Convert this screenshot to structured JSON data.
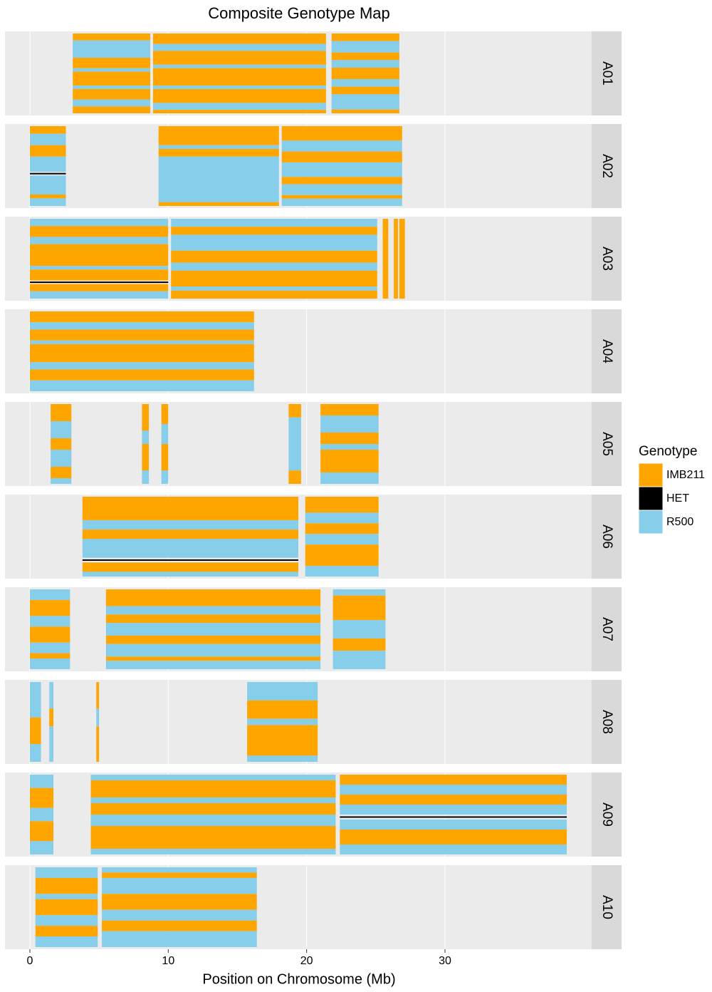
{
  "chart_data": {
    "type": "genotype-map",
    "title": "Composite Genotype Map",
    "x_label": "Position on Chromosome (Mb)",
    "xlim": [
      -1.8,
      40.6
    ],
    "xticks": [
      0,
      10,
      20,
      30
    ],
    "legend_title": "Genotype",
    "genotypes": [
      {
        "name": "IMB211",
        "color": "#ffa500"
      },
      {
        "name": "HET",
        "color": "#000000"
      },
      {
        "name": "R500",
        "color": "#87ceeb"
      }
    ],
    "chromosomes": [
      {
        "name": "A01",
        "blocks": [
          {
            "start": 3.1,
            "end": 8.7,
            "bands": [
              [
                0,
                2
              ],
              [
                2,
                5
              ],
              [
                0,
                3
              ],
              [
                2,
                1
              ],
              [
                0,
                4
              ],
              [
                2,
                1
              ],
              [
                0,
                3
              ],
              [
                2,
                2
              ],
              [
                0,
                2
              ]
            ]
          },
          {
            "start": 8.9,
            "end": 21.4,
            "bands": [
              [
                0,
                3
              ],
              [
                2,
                2
              ],
              [
                0,
                4
              ],
              [
                2,
                1
              ],
              [
                0,
                5
              ],
              [
                2,
                1
              ],
              [
                0,
                4
              ],
              [
                2,
                2
              ],
              [
                0,
                1
              ]
            ]
          },
          {
            "start": 21.8,
            "end": 26.7,
            "bands": [
              [
                0,
                2
              ],
              [
                2,
                3
              ],
              [
                0,
                2
              ],
              [
                2,
                2
              ],
              [
                0,
                3
              ],
              [
                2,
                2
              ],
              [
                0,
                2
              ],
              [
                2,
                4
              ],
              [
                0,
                1
              ]
            ]
          }
        ]
      },
      {
        "name": "A02",
        "blocks": [
          {
            "start": 0,
            "end": 2.6,
            "bands": [
              [
                0,
                2
              ],
              [
                2,
                3
              ],
              [
                0,
                3
              ],
              [
                2,
                4
              ],
              [
                1,
                1
              ],
              [
                2,
                5
              ],
              [
                0,
                1
              ],
              [
                2,
                2
              ]
            ]
          },
          {
            "start": 9.3,
            "end": 18.0,
            "bands": [
              [
                0,
                5
              ],
              [
                2,
                1
              ],
              [
                0,
                2
              ],
              [
                2,
                12
              ],
              [
                0,
                1
              ]
            ]
          },
          {
            "start": 18.2,
            "end": 26.9,
            "bands": [
              [
                0,
                4
              ],
              [
                2,
                3
              ],
              [
                0,
                3
              ],
              [
                2,
                4
              ],
              [
                0,
                2
              ],
              [
                2,
                3
              ],
              [
                0,
                1
              ],
              [
                2,
                2
              ]
            ]
          }
        ]
      },
      {
        "name": "A03",
        "blocks": [
          {
            "start": 0,
            "end": 10.0,
            "bands": [
              [
                2,
                2
              ],
              [
                0,
                3
              ],
              [
                2,
                2
              ],
              [
                0,
                6
              ],
              [
                2,
                1
              ],
              [
                0,
                3
              ],
              [
                1,
                1
              ],
              [
                0,
                2
              ],
              [
                2,
                2
              ]
            ]
          },
          {
            "start": 10.2,
            "end": 25.1,
            "bands": [
              [
                2,
                2
              ],
              [
                0,
                2
              ],
              [
                2,
                4
              ],
              [
                0,
                3
              ],
              [
                2,
                2
              ],
              [
                0,
                4
              ],
              [
                2,
                1
              ],
              [
                0,
                2
              ]
            ]
          },
          {
            "start": 25.5,
            "end": 25.9,
            "bands": [
              [
                0,
                10
              ]
            ]
          },
          {
            "start": 26.3,
            "end": 26.6,
            "bands": [
              [
                0,
                10
              ]
            ]
          },
          {
            "start": 26.7,
            "end": 27.1,
            "bands": [
              [
                0,
                10
              ]
            ]
          }
        ]
      },
      {
        "name": "A04",
        "blocks": [
          {
            "start": 0,
            "end": 16.2,
            "bands": [
              [
                0,
                3
              ],
              [
                2,
                2
              ],
              [
                0,
                3
              ],
              [
                2,
                1
              ],
              [
                0,
                5
              ],
              [
                2,
                2
              ],
              [
                0,
                3
              ],
              [
                2,
                3
              ]
            ]
          }
        ]
      },
      {
        "name": "A05",
        "blocks": [
          {
            "start": 1.5,
            "end": 3.0,
            "bands": [
              [
                0,
                3
              ],
              [
                2,
                3
              ],
              [
                0,
                2
              ],
              [
                2,
                3
              ],
              [
                0,
                2
              ],
              [
                2,
                1
              ]
            ]
          },
          {
            "start": 8.1,
            "end": 8.6,
            "bands": [
              [
                0,
                4
              ],
              [
                2,
                2
              ],
              [
                0,
                4
              ],
              [
                2,
                2
              ]
            ]
          },
          {
            "start": 9.5,
            "end": 10.0,
            "bands": [
              [
                0,
                3
              ],
              [
                2,
                3
              ],
              [
                0,
                4
              ],
              [
                2,
                2
              ]
            ]
          },
          {
            "start": 18.7,
            "end": 19.6,
            "bands": [
              [
                0,
                2
              ],
              [
                2,
                8
              ],
              [
                0,
                2
              ]
            ]
          },
          {
            "start": 21.0,
            "end": 25.2,
            "bands": [
              [
                0,
                2
              ],
              [
                2,
                3
              ],
              [
                0,
                2
              ],
              [
                2,
                1
              ],
              [
                0,
                4
              ],
              [
                2,
                2
              ]
            ]
          }
        ]
      },
      {
        "name": "A06",
        "blocks": [
          {
            "start": 3.8,
            "end": 19.4,
            "bands": [
              [
                0,
                5
              ],
              [
                2,
                2
              ],
              [
                0,
                2
              ],
              [
                2,
                4
              ],
              [
                1,
                1
              ],
              [
                0,
                2
              ],
              [
                2,
                1
              ]
            ]
          },
          {
            "start": 19.9,
            "end": 25.2,
            "bands": [
              [
                0,
                3
              ],
              [
                2,
                2
              ],
              [
                0,
                2
              ],
              [
                2,
                2
              ],
              [
                0,
                4
              ],
              [
                2,
                2
              ]
            ]
          }
        ]
      },
      {
        "name": "A07",
        "blocks": [
          {
            "start": 0,
            "end": 2.9,
            "bands": [
              [
                2,
                2
              ],
              [
                0,
                3
              ],
              [
                2,
                2
              ],
              [
                0,
                3
              ],
              [
                2,
                2
              ],
              [
                0,
                1
              ],
              [
                2,
                2
              ]
            ]
          },
          {
            "start": 5.5,
            "end": 21.0,
            "bands": [
              [
                0,
                4
              ],
              [
                2,
                2
              ],
              [
                0,
                2
              ],
              [
                2,
                3
              ],
              [
                0,
                2
              ],
              [
                2,
                3
              ],
              [
                0,
                1
              ],
              [
                2,
                2
              ]
            ]
          },
          {
            "start": 21.9,
            "end": 25.7,
            "bands": [
              [
                2,
                1
              ],
              [
                0,
                4
              ],
              [
                2,
                3
              ],
              [
                0,
                2
              ],
              [
                2,
                3
              ]
            ]
          }
        ]
      },
      {
        "name": "A08",
        "blocks": [
          {
            "start": 0,
            "end": 0.8,
            "bands": [
              [
                2,
                4
              ],
              [
                0,
                3
              ],
              [
                2,
                2
              ]
            ]
          },
          {
            "start": 1.4,
            "end": 1.7,
            "bands": [
              [
                2,
                3
              ],
              [
                0,
                2
              ],
              [
                2,
                4
              ]
            ]
          },
          {
            "start": 4.8,
            "end": 5.0,
            "bands": [
              [
                0,
                3
              ],
              [
                2,
                2
              ],
              [
                0,
                4
              ]
            ]
          },
          {
            "start": 15.7,
            "end": 20.8,
            "bands": [
              [
                2,
                3
              ],
              [
                0,
                3
              ],
              [
                2,
                1
              ],
              [
                0,
                5
              ],
              [
                2,
                1
              ]
            ]
          }
        ]
      },
      {
        "name": "A09",
        "blocks": [
          {
            "start": 0,
            "end": 1.7,
            "bands": [
              [
                2,
                2
              ],
              [
                0,
                3
              ],
              [
                2,
                2
              ],
              [
                0,
                3
              ],
              [
                2,
                2
              ]
            ]
          },
          {
            "start": 4.4,
            "end": 22.1,
            "bands": [
              [
                2,
                1
              ],
              [
                0,
                3
              ],
              [
                2,
                1
              ],
              [
                0,
                2
              ],
              [
                2,
                2
              ],
              [
                0,
                4
              ],
              [
                2,
                1
              ]
            ]
          },
          {
            "start": 22.4,
            "end": 38.8,
            "bands": [
              [
                0,
                2
              ],
              [
                2,
                2
              ],
              [
                0,
                2
              ],
              [
                2,
                2
              ],
              [
                1,
                1
              ],
              [
                2,
                2
              ],
              [
                0,
                3
              ],
              [
                2,
                2
              ]
            ]
          }
        ]
      },
      {
        "name": "A10",
        "blocks": [
          {
            "start": 0.4,
            "end": 4.9,
            "bands": [
              [
                2,
                2
              ],
              [
                0,
                3
              ],
              [
                2,
                1
              ],
              [
                0,
                3
              ],
              [
                2,
                2
              ],
              [
                0,
                2
              ],
              [
                2,
                2
              ]
            ]
          },
          {
            "start": 5.2,
            "end": 16.4,
            "bands": [
              [
                2,
                1
              ],
              [
                0,
                1
              ],
              [
                2,
                3
              ],
              [
                0,
                3
              ],
              [
                2,
                2
              ],
              [
                0,
                2
              ],
              [
                2,
                3
              ]
            ]
          }
        ]
      }
    ]
  }
}
